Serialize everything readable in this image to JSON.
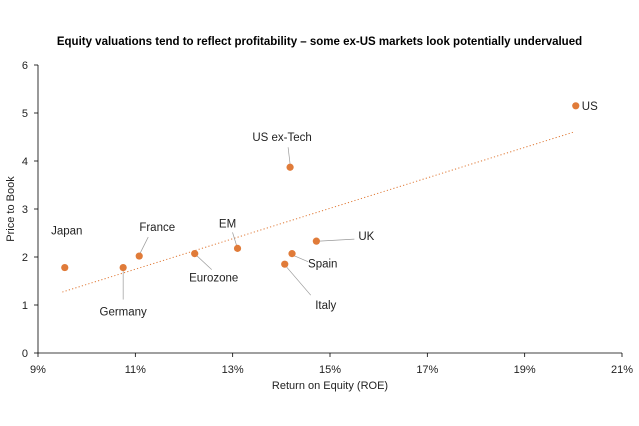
{
  "colors": {
    "marker": "#E07B39",
    "trendline": "#E07B39",
    "axis": "#000000",
    "text": "#222222",
    "leader": "#9a9a9a"
  },
  "chart_data": {
    "type": "scatter",
    "title": "Equity valuations tend to reflect profitability – some ex-US markets look potentially undervalued",
    "xlabel": "Return on Equity (ROE)",
    "ylabel": "Price to Book",
    "xlim": [
      9,
      21
    ],
    "ylim": [
      0,
      6
    ],
    "xticks": [
      9,
      11,
      13,
      15,
      17,
      19,
      21
    ],
    "xtick_labels": [
      "9%",
      "11%",
      "13%",
      "15%",
      "17%",
      "19%",
      "21%"
    ],
    "yticks": [
      0,
      1,
      2,
      3,
      4,
      5,
      6
    ],
    "ytick_labels": [
      "0",
      "1",
      "2",
      "3",
      "4",
      "5",
      "6"
    ],
    "grid": false,
    "points": [
      {
        "label": "US",
        "x": 20.05,
        "y": 5.15
      },
      {
        "label": "US ex-Tech",
        "x": 14.18,
        "y": 3.87
      },
      {
        "label": "UK",
        "x": 14.72,
        "y": 2.33
      },
      {
        "label": "EM",
        "x": 13.1,
        "y": 2.18
      },
      {
        "label": "Spain",
        "x": 14.22,
        "y": 2.07
      },
      {
        "label": "Eurozone",
        "x": 12.22,
        "y": 2.07
      },
      {
        "label": "France",
        "x": 11.08,
        "y": 2.02
      },
      {
        "label": "Italy",
        "x": 14.07,
        "y": 1.85
      },
      {
        "label": "Germany",
        "x": 10.75,
        "y": 1.78
      },
      {
        "label": "Japan",
        "x": 9.55,
        "y": 1.78
      }
    ],
    "trendline": {
      "style": "dotted",
      "x": [
        9.5,
        20.0
      ],
      "y": [
        1.27,
        4.6
      ]
    }
  }
}
